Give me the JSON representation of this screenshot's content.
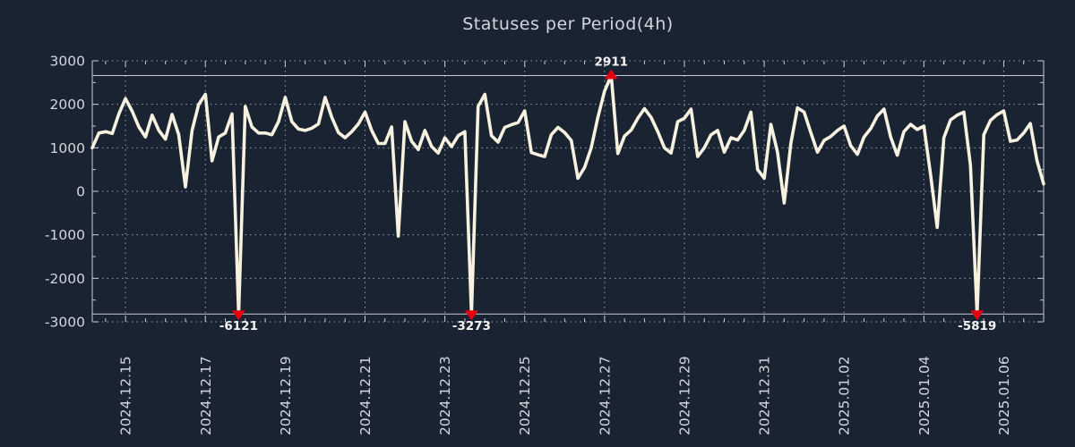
{
  "title": "Statuses per Period(4h)",
  "colors": {
    "background": "#1a2331",
    "line": "#f7f1df",
    "grid": "#9aa3ad",
    "border": "#c7ccd6",
    "clip_line": "#c7ccd6",
    "marker": "#e80011",
    "tick_text": "#d2d7de",
    "annotation_text": "#f5f5f5"
  },
  "chart_data": {
    "type": "line",
    "title": "Statuses per Period(4h)",
    "x_start": "2024.12.14 04:00",
    "interval_hours": 4,
    "values": [
      1000,
      1340,
      1370,
      1330,
      1780,
      2130,
      1840,
      1480,
      1250,
      1750,
      1400,
      1200,
      1770,
      1300,
      100,
      1400,
      2000,
      2230,
      700,
      1250,
      1340,
      1780,
      -6121,
      1950,
      1480,
      1340,
      1340,
      1300,
      1600,
      2160,
      1600,
      1430,
      1400,
      1450,
      1550,
      2160,
      1700,
      1350,
      1230,
      1370,
      1550,
      1820,
      1400,
      1100,
      1100,
      1480,
      -1030,
      1600,
      1150,
      960,
      1400,
      1030,
      880,
      1230,
      1030,
      1280,
      1370,
      -3273,
      1950,
      2230,
      1280,
      1130,
      1470,
      1530,
      1580,
      1850,
      890,
      840,
      800,
      1300,
      1470,
      1350,
      1170,
      300,
      550,
      1000,
      1700,
      2300,
      2911,
      870,
      1270,
      1410,
      1680,
      1900,
      1700,
      1370,
      1000,
      880,
      1600,
      1680,
      1890,
      800,
      1000,
      1300,
      1400,
      900,
      1230,
      1180,
      1400,
      1820,
      500,
      300,
      1540,
      900,
      -270,
      1100,
      1920,
      1820,
      1350,
      900,
      1170,
      1260,
      1400,
      1500,
      1050,
      850,
      1250,
      1440,
      1730,
      1890,
      1250,
      830,
      1370,
      1540,
      1420,
      1500,
      400,
      -830,
      1230,
      1640,
      1750,
      1820,
      600,
      -5819,
      1300,
      1630,
      1760,
      1850,
      1150,
      1180,
      1340,
      1560,
      700,
      170
    ],
    "x_tick_labels": [
      "2024.12.15",
      "2024.12.17",
      "2024.12.19",
      "2024.12.21",
      "2024.12.23",
      "2024.12.25",
      "2024.12.27",
      "2024.12.29",
      "2024.12.31",
      "2025.01.02",
      "2025.01.04",
      "2025.01.06"
    ],
    "x_tick_indices": [
      5,
      17,
      29,
      41,
      53,
      65,
      77,
      89,
      101,
      113,
      125,
      137
    ],
    "y_ticks": [
      3000,
      2000,
      1000,
      0,
      -1000,
      -2000,
      -3000
    ],
    "ylim": [
      -3000,
      3000
    ],
    "clip_lines": [
      2660,
      -2820
    ],
    "annotations": [
      {
        "label": "2911",
        "value": 2911,
        "index": 78,
        "dir": "up"
      },
      {
        "label": "-6121",
        "value": -6121,
        "index": 22,
        "dir": "down"
      },
      {
        "label": "-3273",
        "value": -3273,
        "index": 57,
        "dir": "down"
      },
      {
        "label": "-5819",
        "value": -5819,
        "index": 133,
        "dir": "down"
      }
    ],
    "grid": true,
    "legend": null
  }
}
